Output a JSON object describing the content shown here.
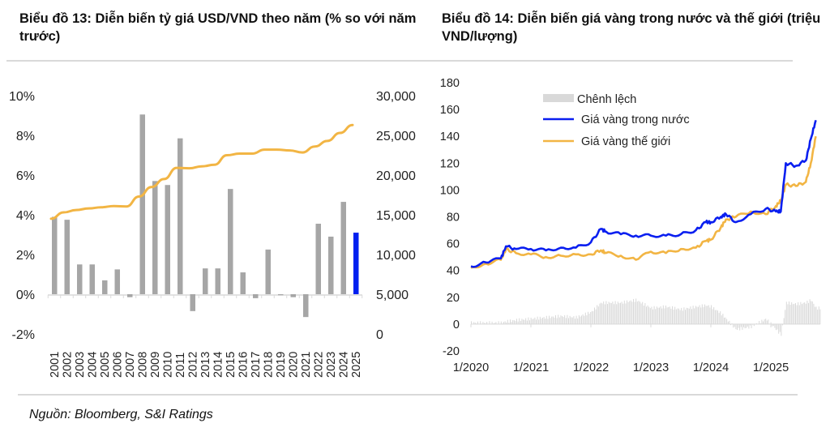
{
  "titles": {
    "chart13": "Biểu đồ 13: Diễn biến tỷ giá USD/VND theo năm (% so với năm trước)",
    "chart14": "Biểu đồ 14: Diễn biến giá vàng trong nước và thế giới (triệu VND/lượng)"
  },
  "source": "Nguồn: Bloomberg, S&I Ratings",
  "colors": {
    "bar": "#a6a6a6",
    "bar_highlight": "#0020f0",
    "line_orange": "#f2b544",
    "line_blue": "#0a1ff0",
    "spread": "#d9d9d9",
    "axis": "#d9d9d9"
  },
  "chart_data": [
    {
      "type": "bar",
      "title": "Biểu đồ 13: Diễn biến tỷ giá USD/VND theo năm (% so với năm trước)",
      "categories": [
        "2001",
        "2002",
        "2003",
        "2004",
        "2005",
        "2006",
        "2007",
        "2008",
        "2009",
        "2010",
        "2011",
        "2012",
        "2013",
        "2014",
        "2015",
        "2016",
        "2017",
        "2018",
        "2019",
        "2020",
        "2021",
        "2022",
        "2023",
        "2024",
        "2025"
      ],
      "series": [
        {
          "name": "% so với năm trước",
          "axis": "left",
          "type": "bar",
          "values": [
            3.9,
            3.75,
            1.5,
            1.5,
            0.7,
            1.25,
            -0.15,
            9.05,
            5.7,
            5.5,
            7.85,
            -0.85,
            1.3,
            1.3,
            5.3,
            1.1,
            -0.2,
            2.25,
            -0.05,
            -0.15,
            -1.15,
            3.55,
            2.9,
            4.65,
            3.1
          ],
          "highlight_last": true
        },
        {
          "name": "USD/VND",
          "axis": "right",
          "type": "line",
          "values": [
            14500,
            15300,
            15600,
            15800,
            15950,
            16100,
            16050,
            17300,
            18500,
            19500,
            20900,
            20850,
            21100,
            21300,
            22500,
            22700,
            22700,
            23200,
            23200,
            23100,
            22850,
            23600,
            24300,
            25300,
            26300
          ]
        }
      ],
      "ylim_left": [
        -2,
        10
      ],
      "yticks_left": [
        "10%",
        "8%",
        "6%",
        "4%",
        "2%",
        "0%",
        "-2%"
      ],
      "ylim_right": [
        0,
        30000
      ],
      "yticks_right": [
        "30,000",
        "25,000",
        "20,000",
        "15,000",
        "10,000",
        "5,000",
        "0"
      ],
      "grid": false
    },
    {
      "type": "line",
      "title": "Biểu đồ 14: Diễn biến giá vàng trong nước và thế giới (triệu VND/lượng)",
      "x": [
        "1/2020",
        "4/2020",
        "7/2020",
        "8/2020",
        "10/2020",
        "1/2021",
        "4/2021",
        "7/2021",
        "10/2021",
        "1/2022",
        "3/2022",
        "4/2022",
        "7/2022",
        "10/2022",
        "1/2023",
        "4/2023",
        "7/2023",
        "10/2023",
        "12/2023",
        "1/2024",
        "3/2024",
        "4/2024",
        "6/2024",
        "9/2024",
        "12/2024",
        "2/2025",
        "3/2025",
        "4/2025",
        "6/2025",
        "8/2025",
        "9/2025",
        "10/2025"
      ],
      "series": [
        {
          "name": "Giá vàng trong nước",
          "values": [
            43,
            46,
            49,
            58,
            56,
            56,
            55,
            57,
            57,
            61,
            71,
            69,
            67,
            66,
            66,
            66,
            67,
            70,
            76,
            76,
            80,
            82,
            76,
            82,
            86,
            84,
            84,
            120,
            118,
            122,
            138,
            152
          ]
        },
        {
          "name": "Giá vàng thế giới",
          "values": [
            42,
            45,
            48,
            56,
            53,
            52,
            50,
            51,
            52,
            52,
            55,
            53,
            51,
            48,
            54,
            53,
            56,
            57,
            62,
            63,
            72,
            78,
            80,
            84,
            82,
            88,
            92,
            104,
            103,
            106,
            120,
            140
          ]
        },
        {
          "name": "Chênh lệch",
          "type": "bar",
          "values": [
            1,
            1,
            1,
            2,
            3,
            4,
            5,
            6,
            5,
            9,
            16,
            16,
            16,
            18,
            12,
            13,
            11,
            13,
            14,
            13,
            8,
            4,
            -4,
            -2,
            4,
            -4,
            -8,
            16,
            15,
            16,
            18,
            12
          ]
        }
      ],
      "ylim": [
        -20,
        180
      ],
      "yticks": [
        "180",
        "160",
        "140",
        "120",
        "100",
        "80",
        "60",
        "40",
        "20",
        "0",
        "-20"
      ],
      "xticks": [
        "1/2020",
        "1/2021",
        "1/2022",
        "1/2023",
        "1/2024",
        "1/2025"
      ],
      "legend": [
        "Chênh lệch",
        "Giá vàng trong nước",
        "Giá vàng thế giới"
      ],
      "legend_position": "top-left",
      "grid": false
    }
  ]
}
